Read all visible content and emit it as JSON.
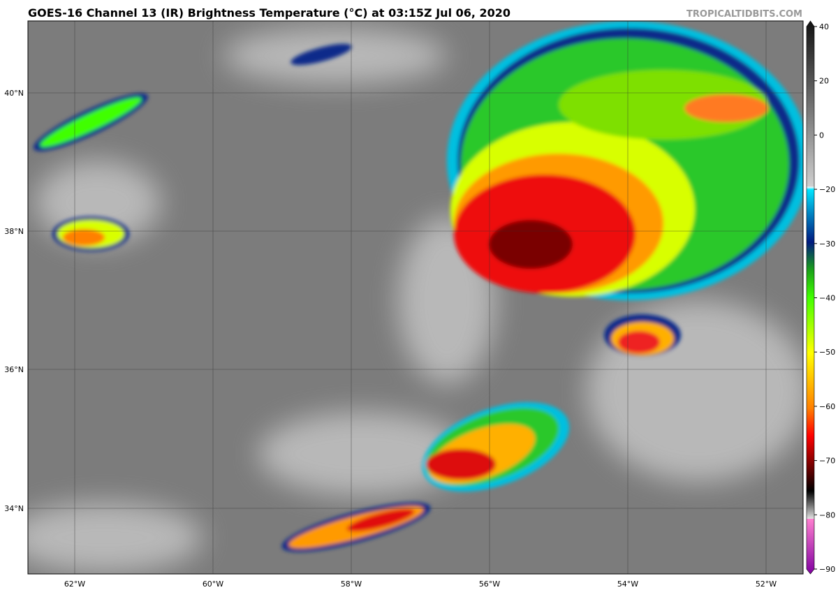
{
  "header": {
    "title": "GOES-16 Channel 13 (IR) Brightness Temperature (°C) at 03:15Z Jul 06, 2020",
    "watermark": "TROPICALTIDBITS.COM"
  },
  "map": {
    "lat_labels": [
      "40°N",
      "38°N",
      "36°N",
      "34°N"
    ],
    "lon_labels": [
      "62°W",
      "60°W",
      "58°W",
      "56°W",
      "54°W",
      "52°W"
    ]
  },
  "colorbar": {
    "ticks": [
      40,
      20,
      0,
      {
        "value": -20,
        "label": "−20"
      },
      {
        "value": -30,
        "label": "−30"
      },
      {
        "value": -40,
        "label": "−40"
      },
      {
        "value": -50,
        "label": "−50"
      },
      {
        "value": -60,
        "label": "−60"
      },
      {
        "value": -70,
        "label": "−70"
      },
      {
        "value": -80,
        "label": "−80"
      },
      {
        "value": -90,
        "label": "−90"
      }
    ]
  }
}
